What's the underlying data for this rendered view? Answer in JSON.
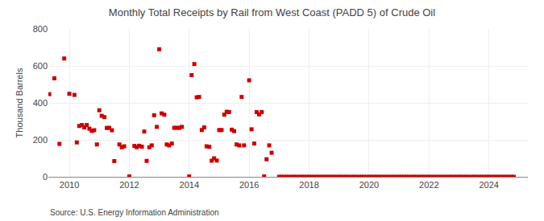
{
  "chart_data": {
    "type": "scatter",
    "title": "Monthly Total Receipts by Rail from West Coast (PADD 5) of Crude Oil",
    "ylabel": "Thousand Barrels",
    "annotations": [
      "Source: U.S. Energy Information Administration"
    ],
    "color": "#cc0000",
    "marker": "square",
    "grid": true,
    "ylim": [
      0,
      800
    ],
    "yticks": [
      0,
      200,
      400,
      600,
      800
    ],
    "xlim": [
      2009.3,
      2025.3
    ],
    "xticks": [
      2010,
      2012,
      2014,
      2016,
      2018,
      2020,
      2022,
      2024
    ],
    "x": [
      2009.33,
      2009.5,
      2009.67,
      2009.83,
      2010.0,
      2010.17,
      2010.25,
      2010.33,
      2010.42,
      2010.5,
      2010.58,
      2010.67,
      2010.75,
      2010.83,
      2010.92,
      2011.0,
      2011.08,
      2011.17,
      2011.25,
      2011.33,
      2011.42,
      2011.5,
      2011.67,
      2011.75,
      2011.83,
      2012.0,
      2012.17,
      2012.25,
      2012.33,
      2012.42,
      2012.5,
      2012.58,
      2012.67,
      2012.75,
      2012.83,
      2012.92,
      2013.0,
      2013.08,
      2013.17,
      2013.25,
      2013.33,
      2013.42,
      2013.5,
      2013.58,
      2013.67,
      2013.75,
      2014.0,
      2014.08,
      2014.17,
      2014.25,
      2014.33,
      2014.42,
      2014.5,
      2014.58,
      2014.67,
      2014.75,
      2014.83,
      2014.92,
      2015.0,
      2015.08,
      2015.17,
      2015.25,
      2015.33,
      2015.42,
      2015.5,
      2015.58,
      2015.67,
      2015.75,
      2015.83,
      2016.0,
      2016.08,
      2016.17,
      2016.25,
      2016.33,
      2016.42,
      2016.5,
      2016.58,
      2016.67,
      2016.75,
      2017.0,
      2017.08,
      2017.17,
      2017.25,
      2017.33,
      2017.42,
      2017.5,
      2017.58,
      2017.67,
      2017.75,
      2017.83,
      2017.92,
      2018.0,
      2018.08,
      2018.17,
      2018.25,
      2018.33,
      2018.42,
      2018.5,
      2018.58,
      2018.67,
      2018.75,
      2018.83,
      2018.92,
      2019.0,
      2019.08,
      2019.17,
      2019.25,
      2019.33,
      2019.42,
      2019.5,
      2019.58,
      2019.67,
      2019.75,
      2019.83,
      2019.92,
      2020.0,
      2020.08,
      2020.17,
      2020.25,
      2020.33,
      2020.42,
      2020.5,
      2020.58,
      2020.67,
      2020.75,
      2020.83,
      2020.92,
      2021.0,
      2021.08,
      2021.17,
      2021.25,
      2021.33,
      2021.42,
      2021.5,
      2021.58,
      2021.67,
      2021.75,
      2021.83,
      2021.92,
      2022.0,
      2022.08,
      2022.17,
      2022.25,
      2022.33,
      2022.42,
      2022.5,
      2022.58,
      2022.67,
      2022.75,
      2022.83,
      2022.92,
      2023.0,
      2023.08,
      2023.17,
      2023.25,
      2023.33,
      2023.42,
      2023.5,
      2023.58,
      2023.67,
      2023.75,
      2023.83,
      2023.92,
      2024.0,
      2024.08,
      2024.17,
      2024.25,
      2024.33,
      2024.42,
      2024.5,
      2024.58,
      2024.67,
      2024.75,
      2024.83
    ],
    "values": [
      447,
      533,
      178,
      640,
      449,
      443,
      186,
      275,
      280,
      267,
      280,
      260,
      248,
      252,
      175,
      360,
      330,
      323,
      264,
      265,
      252,
      85,
      175,
      160,
      165,
      2,
      167,
      160,
      168,
      163,
      245,
      86,
      160,
      170,
      333,
      270,
      690,
      343,
      336,
      175,
      170,
      180,
      265,
      265,
      265,
      270,
      2,
      550,
      610,
      430,
      432,
      253,
      267,
      165,
      162,
      87,
      100,
      88,
      253,
      253,
      336,
      352,
      350,
      255,
      247,
      175,
      170,
      432,
      170,
      522,
      257,
      180,
      350,
      338,
      350,
      2,
      95,
      170,
      130,
      0,
      0,
      0,
      0,
      0,
      0,
      0,
      0,
      0,
      0,
      0,
      0,
      0,
      0,
      0,
      0,
      0,
      0,
      0,
      0,
      0,
      0,
      0,
      0,
      0,
      0,
      0,
      0,
      0,
      0,
      0,
      0,
      0,
      0,
      0,
      0,
      0,
      0,
      0,
      0,
      0,
      0,
      0,
      0,
      0,
      0,
      0,
      0,
      0,
      0,
      0,
      0,
      0,
      0,
      0,
      0,
      0,
      0,
      0,
      0,
      0,
      0,
      0,
      0,
      0,
      0,
      0,
      0,
      0,
      0,
      0,
      0,
      0,
      0,
      0,
      0,
      0,
      0,
      0,
      0,
      0,
      0,
      0,
      0,
      0,
      0,
      0,
      0,
      0,
      0,
      0,
      0,
      0,
      0,
      0
    ]
  }
}
